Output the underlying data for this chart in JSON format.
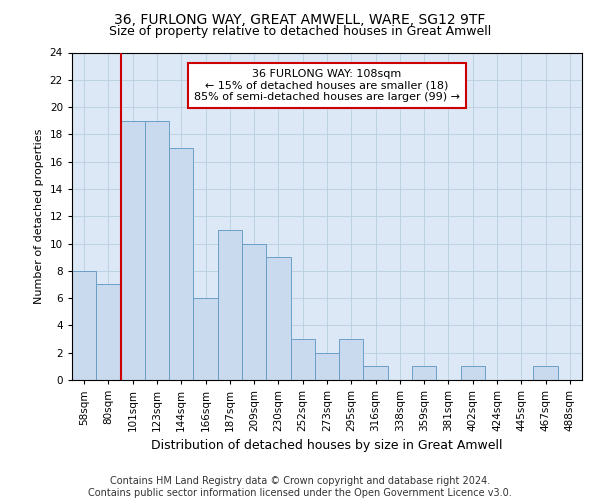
{
  "title1": "36, FURLONG WAY, GREAT AMWELL, WARE, SG12 9TF",
  "title2": "Size of property relative to detached houses in Great Amwell",
  "xlabel": "Distribution of detached houses by size in Great Amwell",
  "ylabel": "Number of detached properties",
  "categories": [
    "58sqm",
    "80sqm",
    "101sqm",
    "123sqm",
    "144sqm",
    "166sqm",
    "187sqm",
    "209sqm",
    "230sqm",
    "252sqm",
    "273sqm",
    "295sqm",
    "316sqm",
    "338sqm",
    "359sqm",
    "381sqm",
    "402sqm",
    "424sqm",
    "445sqm",
    "467sqm",
    "488sqm"
  ],
  "values": [
    8,
    7,
    19,
    19,
    17,
    6,
    11,
    10,
    9,
    3,
    2,
    3,
    1,
    0,
    1,
    0,
    1,
    0,
    0,
    1,
    0
  ],
  "bar_color": "#c9d9ee",
  "bar_edge_color": "#6a9fc8",
  "subject_line_color": "#cc0000",
  "subject_line_index": 2,
  "annotation_text": "36 FURLONG WAY: 108sqm\n← 15% of detached houses are smaller (18)\n85% of semi-detached houses are larger (99) →",
  "annotation_box_color": "#ffffff",
  "annotation_box_edge": "#cc0000",
  "ylim": [
    0,
    24
  ],
  "yticks": [
    0,
    2,
    4,
    6,
    8,
    10,
    12,
    14,
    16,
    18,
    20,
    22,
    24
  ],
  "footer1": "Contains HM Land Registry data © Crown copyright and database right 2024.",
  "footer2": "Contains public sector information licensed under the Open Government Licence v3.0.",
  "bg_color": "#ffffff",
  "plot_bg_color": "#dce8f5",
  "grid_color": "#b8cfe0",
  "title1_fontsize": 10,
  "title2_fontsize": 9,
  "xlabel_fontsize": 9,
  "ylabel_fontsize": 8,
  "tick_fontsize": 7.5,
  "footer_fontsize": 7,
  "ann_fontsize": 8
}
